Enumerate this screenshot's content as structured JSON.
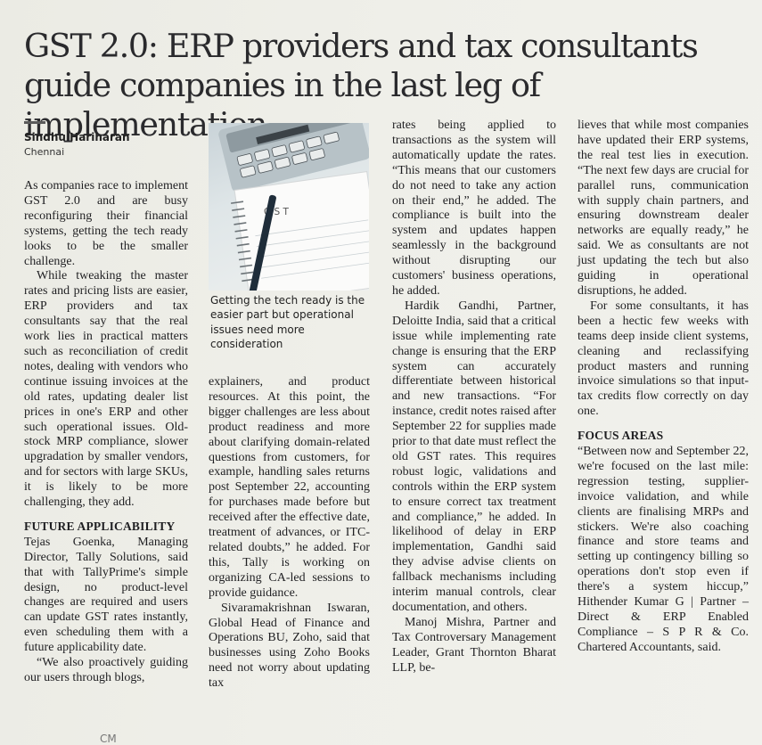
{
  "article": {
    "headline_line1": "GST 2.0: ERP providers and tax consultants",
    "headline_line2": "guide companies in the last leg of implementation",
    "author": "Sindhu Hariharan",
    "dateline": "Chennai",
    "photo_caption": "Getting the tech ready is the easier part but operational issues need more consideration",
    "photo_text_gst": "G S T",
    "footer_mark": "CM"
  },
  "columns": {
    "col1": {
      "p1": "As companies race to implement GST 2.0 and are busy reconfiguring their financial systems, getting the tech ready looks to be the smaller challenge.",
      "p2": "While tweaking the master rates and pricing lists are easier, ERP providers and tax consultants say that the real work lies in practical matters such as reconciliation of credit notes, dealing with vendors who continue issuing invoices at the old rates, updating dealer list prices in one's ERP and other such operational issues. Old-stock MRP compliance, slower upgradation by smaller vendors, and for sectors with large SKUs, it is likely to be more challenging, they add.",
      "h1": "FUTURE APPLICABILITY",
      "p3": "Tejas Goenka, Managing Director, Tally Solutions, said that with TallyPrime's simple design, no product-level changes are required and users can update GST rates instantly, even scheduling them with a future applicability date.",
      "p4": "“We also proactively guiding our users through blogs,"
    },
    "col2": {
      "p1": "explainers, and product resources. At this point, the bigger challenges are less about product readiness and more about clarifying domain-related questions from customers, for example, handling sales returns post September 22, accounting for purchases made before but received after the effective date, treatment of advances, or ITC-related doubts,” he added. For this, Tally is working on organizing CA-led sessions to provide guidance.",
      "p2": "Sivaramakrishnan Iswaran, Global Head of Finance and Operations BU, Zoho, said that businesses using Zoho Books need not worry about updating tax"
    },
    "col3": {
      "p1": "rates being applied to transactions as the system will automatically update the rates. “This means that our customers do not need to take any action on their end,” he added. The compliance is built into the system and updates happen seamlessly in the background without disrupting our customers' business operations, he added.",
      "p2": "Hardik Gandhi, Partner, Deloitte India, said that a critical issue while implementing rate change is ensuring that the ERP system can accurately differentiate between historical and new transactions. “For instance, credit notes raised after September 22 for supplies made prior to that date must reflect the old GST rates. This requires robust logic, validations and controls within the ERP system to ensure correct tax treatment and compliance,” he added. In likelihood of delay in ERP implementation, Gandhi said they advise advise clients on fallback mechanisms including interim manual controls, clear documentation, and others.",
      "p3": "Manoj Mishra, Partner and Tax Controversary Management Leader, Grant Thornton Bharat LLP, be-"
    },
    "col4": {
      "p1": "lieves that while most companies have updated their ERP systems, the real test lies in execution. “The next few days are crucial for parallel runs, communication with supply chain partners, and ensuring downstream dealer networks are equally ready,” he said. We as consultants are not just updating the tech but also guiding in operational disruptions, he added.",
      "p2": "For some consultants, it has been a hectic few weeks with teams deep inside client systems, cleaning and reclassifying product masters and running invoice simulations so that input-tax credits flow correctly on day one.",
      "h1": "FOCUS AREAS",
      "p3": "“Between now and September 22, we're focused on the last mile: regression testing, supplier-invoice validation, and while clients are finalising MRPs and stickers. We're also coaching finance and store teams and setting up contingency billing so operations don't stop even if there's a system hiccup,” Hithender Kumar G | Partner – Direct & ERP Enabled Compliance – S P R & Co. Chartered Accountants, said."
    }
  }
}
